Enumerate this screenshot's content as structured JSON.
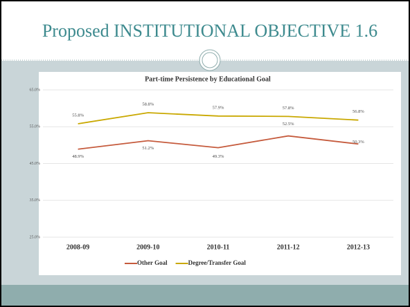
{
  "slide_title": "Proposed INSTITUTIONAL OBJECTIVE 1.6",
  "chart_data": {
    "type": "line",
    "title": "Part-time Persistence by Educational Goal",
    "categories": [
      "2008-09",
      "2009-10",
      "2010-11",
      "2011-12",
      "2012-13"
    ],
    "series": [
      {
        "name": "Other Goal",
        "color": "#c55a3c",
        "values": [
          48.9,
          51.2,
          49.3,
          52.5,
          50.3
        ],
        "value_labels": [
          "48.9%",
          "51.2%",
          "49.3%",
          "52.5%",
          "50.3%"
        ]
      },
      {
        "name": "Degree/Transfer Goal",
        "color": "#c9a800",
        "values": [
          55.8,
          58.8,
          57.9,
          57.8,
          56.8
        ],
        "value_labels": [
          "55.8%",
          "58.8%",
          "57.9%",
          "57.8%",
          "56.8%"
        ]
      }
    ],
    "ylim": [
      25,
      65
    ],
    "yticks": [
      {
        "value": 25,
        "label": "25.0%"
      },
      {
        "value": 35,
        "label": "35.0%"
      },
      {
        "value": 45,
        "label": "45.0%"
      },
      {
        "value": 55,
        "label": "55.0%"
      },
      {
        "value": 65,
        "label": "65.0%"
      }
    ],
    "grid": true,
    "legend": "bottom"
  }
}
